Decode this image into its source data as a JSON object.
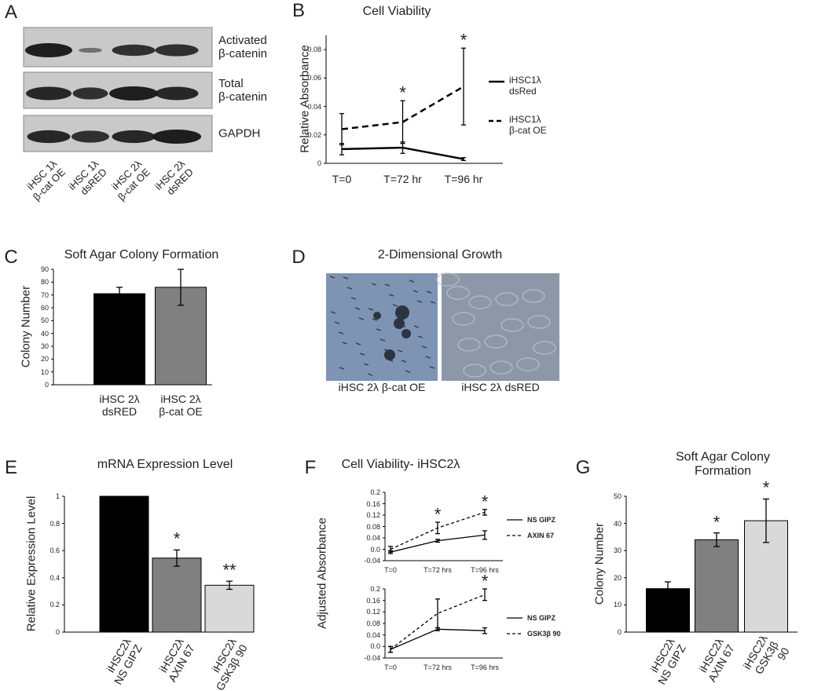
{
  "blot": {
    "panel": "A",
    "rows": [
      "Activated\nβ-catenin",
      "Total\nβ-catenin",
      "GAPDH"
    ],
    "lanes": [
      "iHSC 1λ\nβ-cat OE",
      "iHSC 1λ\ndsRED",
      "iHSC 2λ\nβ-cat OE",
      "iHSC 2λ\ndsRED"
    ]
  },
  "images": {
    "panel": "D",
    "title": "2-Dimensional Growth",
    "captions": [
      "iHSC 2λ β-cat OE",
      "iHSC 2λ dsRED"
    ]
  },
  "chart_data": [
    {
      "type": "line",
      "panel": "B",
      "title": "Cell Viability",
      "y_label": "Relative Absorbance",
      "categories": [
        "T=0",
        "T=72 hr",
        "T=96 hr"
      ],
      "series": [
        {
          "name": "iHSC1λ\ndsRed",
          "color": "#000000",
          "line_style": "solid",
          "values": [
            0.01,
            0.011,
            0.003
          ],
          "errors": [
            0.004,
            0.004,
            0.001
          ]
        },
        {
          "name": "iHSC1λ\nβ-cat OE",
          "color": "#000000",
          "line_style": "dashed",
          "values": [
            0.024,
            0.029,
            0.054
          ],
          "errors": [
            0.011,
            0.015,
            0.027
          ]
        }
      ],
      "annotations": [
        null,
        "*",
        "*"
      ],
      "ylim": [
        0,
        0.09
      ],
      "yticks": [
        0,
        0.02,
        0.04,
        0.06,
        0.08
      ],
      "grid": false
    },
    {
      "type": "bar",
      "panel": "C",
      "title": "Soft Agar Colony Formation",
      "y_label": "Colony Number",
      "categories": [
        "iHSC 2λ\ndsRED",
        "iHSC 2λ\nβ-cat OE"
      ],
      "values": [
        71,
        76
      ],
      "errors": [
        5,
        14
      ],
      "colors": [
        "#000000",
        "#808080"
      ],
      "ylim": [
        0,
        90
      ],
      "yticks": [
        0,
        10,
        20,
        30,
        40,
        50,
        60,
        70,
        80,
        90
      ],
      "grid": false
    },
    {
      "type": "bar",
      "panel": "E",
      "title": "mRNA Expression Level",
      "y_label": "Relative Expression Level",
      "categories": [
        "iHSC2λ\nNS GIPZ",
        "iHSC2λ\nAXIN 67",
        "iHSC2λ\nGSK3β 90"
      ],
      "values": [
        1,
        0.545,
        0.345
      ],
      "errors": [
        0,
        0.06,
        0.03
      ],
      "colors": [
        "#000000",
        "#808080",
        "#d9d9d9"
      ],
      "annotations": [
        null,
        "*",
        "**"
      ],
      "ylim": [
        0,
        1
      ],
      "yticks": [
        0,
        0.2,
        0.4,
        0.6,
        0.8,
        1
      ],
      "grid": false
    },
    {
      "type": "line",
      "panel": "F",
      "title": "Cell Viability- iHSC2λ",
      "y_label": "Adjusted Absorbance",
      "categories": [
        "T=0",
        "T=72 hrs",
        "T=96 hrs"
      ],
      "series": [
        {
          "name": "NS GIPZ",
          "color": "#000000",
          "line_style": "solid",
          "values": [
            -0.01,
            0.03,
            0.05
          ],
          "errors": [
            0.005,
            0.005,
            0.015
          ]
        },
        {
          "name": "AXIN 67",
          "color": "#000000",
          "line_style": "dashed",
          "values": [
            0.0,
            0.075,
            0.13
          ],
          "errors": [
            0.01,
            0.02,
            0.01
          ]
        }
      ],
      "annotations": [
        null,
        "*",
        "*"
      ],
      "ylim": [
        -0.04,
        0.2
      ],
      "yticks": [
        -0.04,
        {
          "value": 0,
          "label": "0.0"
        },
        0.04,
        0.08,
        0.12,
        0.16,
        0.2
      ],
      "grid": false
    },
    {
      "type": "line",
      "categories": [
        "T=0",
        "T=72 hrs",
        "T=96 hrs"
      ],
      "series": [
        {
          "name": "NS GIPZ",
          "color": "#000000",
          "line_style": "solid",
          "values": [
            -0.01,
            0.06,
            0.055
          ],
          "errors": [
            0.01,
            0.005,
            0.01
          ]
        },
        {
          "name": "GSK3β 90",
          "color": "#000000",
          "line_style": "dashed",
          "values": [
            -0.01,
            0.115,
            0.18
          ],
          "errors": [
            0.01,
            0.05,
            0.02
          ]
        }
      ],
      "annotations": [
        null,
        null,
        "*"
      ],
      "ylim": [
        -0.04,
        0.2
      ],
      "yticks": [
        -0.04,
        {
          "value": 0,
          "label": "0.0"
        },
        0.04,
        0.08,
        0.12,
        0.16,
        0.2
      ],
      "grid": false
    },
    {
      "type": "bar",
      "panel": "G",
      "title": "Soft Agar Colony Formation",
      "y_label": "Colony Number",
      "categories": [
        "iHSC2λ\nNS GIPZ",
        "iHSC2λ\nAXIN 67",
        "iHSC2λ\nGSK3β 90"
      ],
      "values": [
        16,
        34,
        41
      ],
      "errors": [
        2.5,
        2.5,
        8
      ],
      "colors": [
        "#000000",
        "#808080",
        "#d9d9d9"
      ],
      "annotations": [
        null,
        "*",
        "*"
      ],
      "ylim": [
        0,
        50
      ],
      "yticks": [
        0,
        10,
        20,
        30,
        40,
        50
      ],
      "grid": false
    }
  ]
}
